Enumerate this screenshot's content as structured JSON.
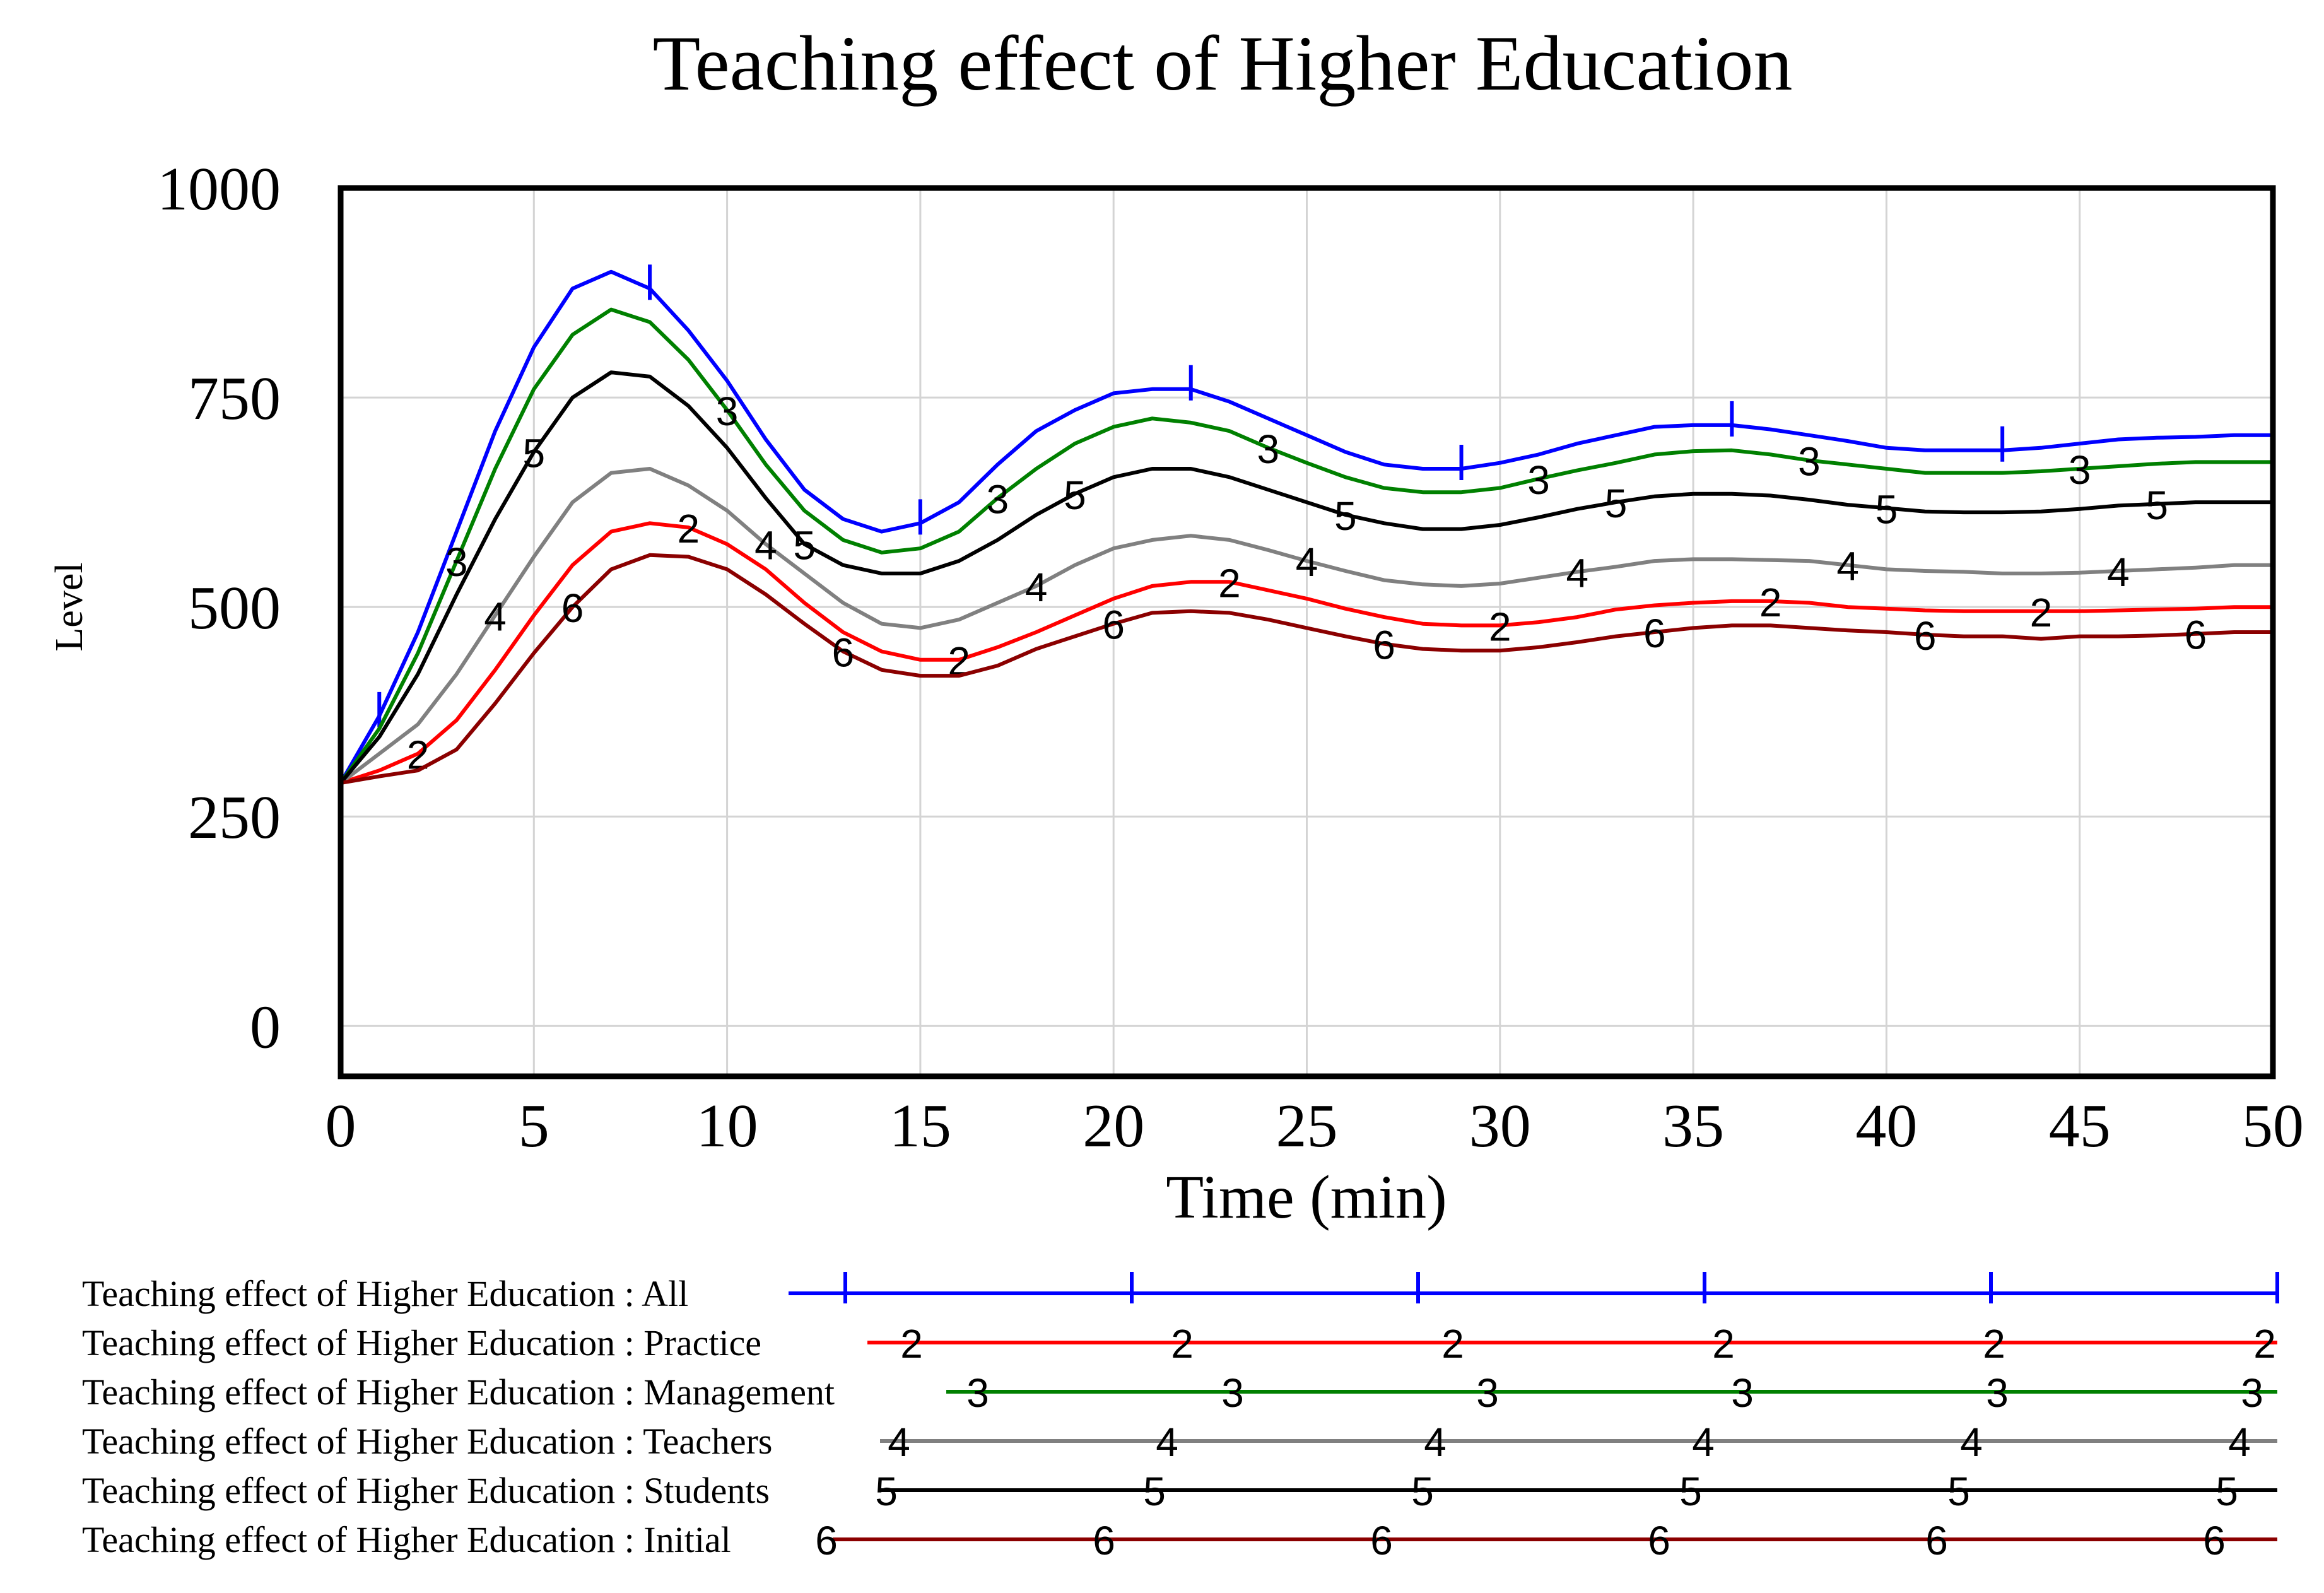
{
  "chart_data": {
    "type": "line",
    "title": "Teaching effect of Higher Education",
    "xlabel": "Time (min)",
    "ylabel": "Level",
    "xlim": [
      0,
      50
    ],
    "ylim": [
      -60,
      1000
    ],
    "x_ticks": [
      0,
      5,
      10,
      15,
      20,
      25,
      30,
      35,
      40,
      45,
      50
    ],
    "y_ticks": [
      0,
      250,
      500,
      750,
      1000
    ],
    "grid": true,
    "legend_position": "bottom",
    "x": [
      0,
      1,
      2,
      3,
      4,
      5,
      6,
      7,
      8,
      9,
      10,
      11,
      12,
      13,
      14,
      15,
      16,
      17,
      18,
      19,
      20,
      21,
      22,
      23,
      24,
      25,
      26,
      27,
      28,
      29,
      30,
      31,
      32,
      33,
      34,
      35,
      36,
      37,
      38,
      39,
      40,
      41,
      42,
      43,
      44,
      45,
      46,
      47,
      48,
      49,
      50
    ],
    "series": [
      {
        "name": "Teaching effect of Higher Education : All",
        "marker": "1",
        "color": "#0000ff",
        "values": [
          290,
          370,
          470,
          590,
          710,
          810,
          880,
          900,
          880,
          830,
          770,
          700,
          640,
          605,
          590,
          600,
          625,
          670,
          710,
          735,
          755,
          760,
          760,
          745,
          725,
          705,
          685,
          670,
          665,
          665,
          672,
          682,
          695,
          705,
          715,
          717,
          717,
          712,
          705,
          698,
          690,
          687,
          687,
          687,
          690,
          695,
          700,
          702,
          703,
          705,
          705
        ]
      },
      {
        "name": "Teaching effect of Higher Education : Practice",
        "marker": "2",
        "color": "#ff0000",
        "values": [
          290,
          305,
          325,
          365,
          425,
          490,
          550,
          590,
          600,
          595,
          575,
          545,
          505,
          470,
          447,
          437,
          437,
          452,
          470,
          490,
          510,
          525,
          530,
          530,
          520,
          510,
          498,
          488,
          480,
          478,
          478,
          482,
          488,
          497,
          502,
          505,
          507,
          507,
          505,
          500,
          498,
          496,
          495,
          495,
          495,
          495,
          496,
          497,
          498,
          500,
          500
        ]
      },
      {
        "name": "Teaching effect of Higher Education : Management",
        "marker": "3",
        "color": "#008000",
        "values": [
          290,
          355,
          445,
          555,
          665,
          760,
          825,
          855,
          840,
          795,
          735,
          670,
          615,
          580,
          565,
          570,
          590,
          630,
          665,
          695,
          715,
          725,
          720,
          710,
          690,
          672,
          655,
          642,
          637,
          637,
          642,
          653,
          663,
          672,
          682,
          686,
          687,
          682,
          675,
          670,
          665,
          660,
          660,
          660,
          662,
          665,
          668,
          671,
          673,
          673,
          673
        ]
      },
      {
        "name": "Teaching effect of Higher Education : Teachers",
        "marker": "4",
        "color": "#808080",
        "values": [
          290,
          325,
          360,
          420,
          490,
          560,
          625,
          660,
          665,
          645,
          615,
          575,
          540,
          505,
          480,
          475,
          485,
          505,
          525,
          550,
          570,
          580,
          585,
          580,
          568,
          555,
          543,
          532,
          527,
          525,
          528,
          535,
          542,
          548,
          555,
          557,
          557,
          556,
          555,
          550,
          545,
          543,
          542,
          540,
          540,
          541,
          543,
          545,
          547,
          550,
          550
        ]
      },
      {
        "name": "Teaching effect of Higher Education : Students",
        "marker": "5",
        "color": "#000000",
        "values": [
          290,
          345,
          420,
          515,
          605,
          685,
          750,
          780,
          775,
          740,
          690,
          630,
          575,
          550,
          540,
          540,
          555,
          580,
          610,
          635,
          655,
          665,
          665,
          655,
          640,
          625,
          610,
          600,
          593,
          593,
          598,
          607,
          617,
          625,
          632,
          635,
          635,
          633,
          628,
          622,
          618,
          614,
          613,
          613,
          614,
          617,
          621,
          623,
          625,
          625,
          625
        ]
      },
      {
        "name": "Teaching effect of Higher Education : Initial",
        "marker": "6",
        "color": "#8b0000",
        "values": [
          290,
          298,
          305,
          330,
          385,
          445,
          500,
          545,
          562,
          560,
          545,
          515,
          480,
          447,
          425,
          418,
          418,
          430,
          450,
          465,
          480,
          493,
          495,
          493,
          485,
          475,
          465,
          456,
          450,
          448,
          448,
          452,
          458,
          465,
          470,
          475,
          478,
          478,
          475,
          472,
          470,
          467,
          465,
          465,
          462,
          465,
          465,
          466,
          468,
          470,
          470
        ]
      }
    ]
  }
}
